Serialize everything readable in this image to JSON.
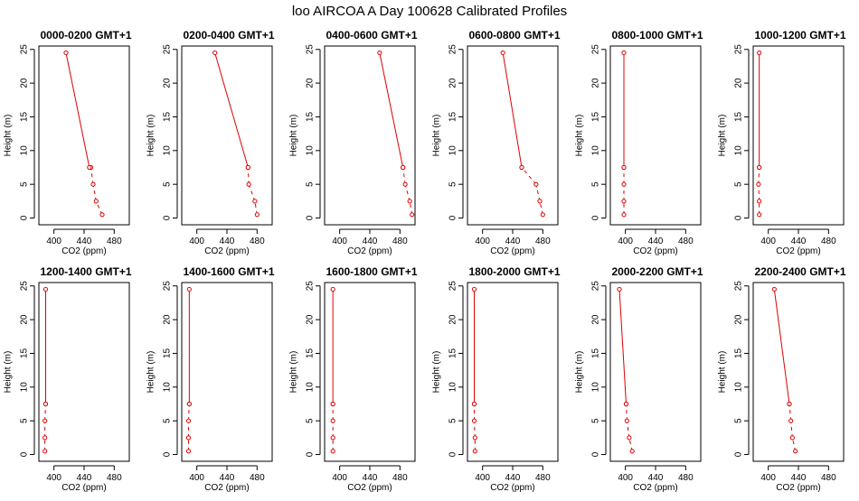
{
  "title": "loo AIRCOA A  Day 100628  Calibrated Profiles",
  "colors": {
    "series": "#dd0000",
    "axis": "#000000",
    "background": "#ffffff"
  },
  "chart_data": [
    {
      "type": "line",
      "title": "0000-0200 GMT+1",
      "xlabel": "CO2 (ppm)",
      "ylabel": "Height (m)",
      "xlim": [
        380,
        500
      ],
      "ylim": [
        -1,
        25.5
      ],
      "xticks": [
        400,
        440,
        480
      ],
      "yticks": [
        0,
        5,
        10,
        15,
        20,
        25
      ],
      "series": [
        {
          "x": [
            464,
            456,
            452,
            449,
            447,
            416
          ],
          "y": [
            0.5,
            2.5,
            5,
            7.5,
            7.5,
            24.5
          ]
        }
      ]
    },
    {
      "type": "line",
      "title": "0200-0400 GMT+1",
      "xlabel": "CO2 (ppm)",
      "ylabel": "Height (m)",
      "xlim": [
        380,
        500
      ],
      "ylim": [
        -1,
        25.5
      ],
      "xticks": [
        400,
        440,
        480
      ],
      "yticks": [
        0,
        5,
        10,
        15,
        20,
        25
      ],
      "series": [
        {
          "x": [
            480,
            477,
            469,
            468,
            468,
            424
          ],
          "y": [
            0.5,
            2.5,
            5,
            7.5,
            7.5,
            24.5
          ]
        }
      ]
    },
    {
      "type": "line",
      "title": "0400-0600 GMT+1",
      "xlabel": "CO2 (ppm)",
      "ylabel": "Height (m)",
      "xlim": [
        380,
        500
      ],
      "ylim": [
        -1,
        25.5
      ],
      "xticks": [
        400,
        440,
        480
      ],
      "yticks": [
        0,
        5,
        10,
        15,
        20,
        25
      ],
      "series": [
        {
          "x": [
            496,
            493,
            487,
            484,
            484,
            453
          ],
          "y": [
            0.5,
            2.5,
            5,
            7.5,
            7.5,
            24.5
          ]
        }
      ]
    },
    {
      "type": "line",
      "title": "0600-0800 GMT+1",
      "xlabel": "CO2 (ppm)",
      "ylabel": "Height (m)",
      "xlim": [
        380,
        500
      ],
      "ylim": [
        -1,
        25.5
      ],
      "xticks": [
        400,
        440,
        480
      ],
      "yticks": [
        0,
        5,
        10,
        15,
        20,
        25
      ],
      "series": [
        {
          "x": [
            480,
            476,
            471,
            452,
            452,
            427
          ],
          "y": [
            0.5,
            2.5,
            5,
            7.5,
            7.5,
            24.5
          ]
        }
      ]
    },
    {
      "type": "line",
      "title": "0800-1000 GMT+1",
      "xlabel": "CO2 (ppm)",
      "ylabel": "Height (m)",
      "xlim": [
        380,
        500
      ],
      "ylim": [
        -1,
        25.5
      ],
      "xticks": [
        400,
        440,
        480
      ],
      "yticks": [
        0,
        5,
        10,
        15,
        20,
        25
      ],
      "series": [
        {
          "x": [
            398,
            398,
            398,
            398,
            398,
            398
          ],
          "y": [
            0.5,
            2.5,
            5,
            7.5,
            7.5,
            24.5
          ]
        }
      ]
    },
    {
      "type": "line",
      "title": "1000-1200 GMT+1",
      "xlabel": "CO2 (ppm)",
      "ylabel": "Height (m)",
      "xlim": [
        380,
        500
      ],
      "ylim": [
        -1,
        25.5
      ],
      "xticks": [
        400,
        440,
        480
      ],
      "yticks": [
        0,
        5,
        10,
        15,
        20,
        25
      ],
      "series": [
        {
          "x": [
            388,
            388,
            387,
            388,
            388,
            388
          ],
          "y": [
            0.5,
            2.5,
            5,
            7.5,
            7.5,
            24.5
          ]
        }
      ]
    },
    {
      "type": "line",
      "title": "1200-1400 GMT+1",
      "xlabel": "CO2 (ppm)",
      "ylabel": "Height (m)",
      "xlim": [
        380,
        500
      ],
      "ylim": [
        -1,
        25.5
      ],
      "xticks": [
        400,
        440,
        480
      ],
      "yticks": [
        0,
        5,
        10,
        15,
        20,
        25
      ],
      "series": [
        {
          "x": [
            388,
            388,
            388,
            389,
            389,
            389
          ],
          "y": [
            0.5,
            2.5,
            5,
            7.5,
            7.5,
            24.5
          ]
        }
      ]
    },
    {
      "type": "line",
      "title": "1400-1600 GMT+1",
      "xlabel": "CO2 (ppm)",
      "ylabel": "Height (m)",
      "xlim": [
        380,
        500
      ],
      "ylim": [
        -1,
        25.5
      ],
      "xticks": [
        400,
        440,
        480
      ],
      "yticks": [
        0,
        5,
        10,
        15,
        20,
        25
      ],
      "series": [
        {
          "x": [
            389,
            389,
            389,
            390,
            390,
            390
          ],
          "y": [
            0.5,
            2.5,
            5,
            7.5,
            7.5,
            24.5
          ]
        }
      ]
    },
    {
      "type": "line",
      "title": "1600-1800 GMT+1",
      "xlabel": "CO2 (ppm)",
      "ylabel": "Height (m)",
      "xlim": [
        380,
        500
      ],
      "ylim": [
        -1,
        25.5
      ],
      "xticks": [
        400,
        440,
        480
      ],
      "yticks": [
        0,
        5,
        10,
        15,
        20,
        25
      ],
      "series": [
        {
          "x": [
            391,
            391,
            391,
            391,
            391,
            391
          ],
          "y": [
            0.5,
            2.5,
            5,
            7.5,
            7.5,
            24.5
          ]
        }
      ]
    },
    {
      "type": "line",
      "title": "1800-2000 GMT+1",
      "xlabel": "CO2 (ppm)",
      "ylabel": "Height (m)",
      "xlim": [
        380,
        500
      ],
      "ylim": [
        -1,
        25.5
      ],
      "xticks": [
        400,
        440,
        480
      ],
      "yticks": [
        0,
        5,
        10,
        15,
        20,
        25
      ],
      "series": [
        {
          "x": [
            390,
            390,
            389,
            389,
            389,
            389
          ],
          "y": [
            0.5,
            2.5,
            5,
            7.5,
            7.5,
            24.5
          ]
        }
      ]
    },
    {
      "type": "line",
      "title": "2000-2200 GMT+1",
      "xlabel": "CO2 (ppm)",
      "ylabel": "Height (m)",
      "xlim": [
        380,
        500
      ],
      "ylim": [
        -1,
        25.5
      ],
      "xticks": [
        400,
        440,
        480
      ],
      "yticks": [
        0,
        5,
        10,
        15,
        20,
        25
      ],
      "series": [
        {
          "x": [
            409,
            405,
            402,
            401,
            401,
            392
          ],
          "y": [
            0.5,
            2.5,
            5,
            7.5,
            7.5,
            24.5
          ]
        }
      ]
    },
    {
      "type": "line",
      "title": "2200-2400 GMT+1",
      "xlabel": "CO2 (ppm)",
      "ylabel": "Height (m)",
      "xlim": [
        380,
        500
      ],
      "ylim": [
        -1,
        25.5
      ],
      "xticks": [
        400,
        440,
        480
      ],
      "yticks": [
        0,
        5,
        10,
        15,
        20,
        25
      ],
      "series": [
        {
          "x": [
            436,
            432,
            430,
            428,
            428,
            408
          ],
          "y": [
            0.5,
            2.5,
            5,
            7.5,
            7.5,
            24.5
          ]
        }
      ]
    }
  ]
}
